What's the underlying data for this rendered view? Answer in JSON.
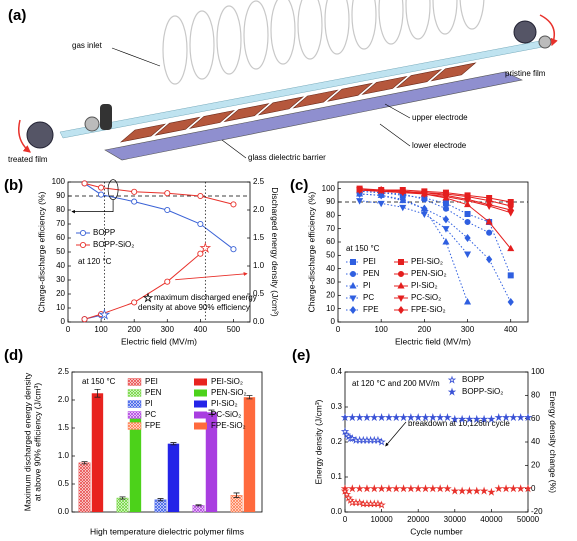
{
  "figure_a": {
    "label": "(a)",
    "gas_inlet": "gas inlet",
    "pristine_film": "pristine  film",
    "upper_electrode": "upper electrode",
    "lower_electrode": "lower electrode",
    "glass_barrier": "glass dielectric barrier",
    "treated_film": "treated film"
  },
  "chart_data": [
    {
      "type": "line",
      "panel_label": "(b)",
      "x_label": "Electric field (MV/m)",
      "y_label": "Charge-discharge efficiency (%)",
      "y2_label": "Discharged energy density (J/cm³)",
      "x": [
        50,
        100,
        200,
        300,
        400,
        500
      ],
      "xlim": [
        0,
        550
      ],
      "xticks": [
        0,
        100,
        200,
        300,
        400,
        500
      ],
      "ylim": [
        0,
        100
      ],
      "yticks": [
        0,
        10,
        20,
        30,
        40,
        50,
        60,
        70,
        80,
        90,
        100
      ],
      "y2lim": [
        0,
        2.5
      ],
      "y2ticks": [
        {
          "value": 0,
          "label": "0.0"
        },
        0.5,
        {
          "value": 1,
          "label": "1.0"
        },
        1.5,
        {
          "value": 2,
          "label": "2.0"
        },
        2.5
      ],
      "reference_line": 90,
      "series": [
        {
          "name": "BOPP",
          "color": "#3a62d6",
          "marker": "circle",
          "filled": false,
          "values": [
            99,
            91,
            86,
            80,
            70,
            52
          ]
        },
        {
          "name": "BOPP-SiO₂",
          "color": "#e8312b",
          "marker": "circle",
          "filled": false,
          "values": [
            99,
            96,
            93,
            92,
            90,
            84
          ]
        },
        {
          "axis": "y2",
          "color": "#3a62d6",
          "marker": "circle",
          "filled": false,
          "values": [
            0.05,
            0.12,
            null,
            null,
            null,
            null
          ]
        },
        {
          "axis": "y2",
          "color": "#e8312b",
          "marker": "circle",
          "filled": false,
          "values": [
            0.05,
            0.14,
            0.35,
            0.72,
            1.22,
            null
          ]
        }
      ],
      "stars": [
        {
          "x": 110,
          "value": 0.13,
          "color": "#3a62d6"
        },
        {
          "x": 415,
          "value": 1.32,
          "color": "#e8312b"
        }
      ],
      "star_note": [
        "maximum discharged energy",
        "density at above 90% efficiency"
      ],
      "annotations": [
        "at 120 °C"
      ]
    },
    {
      "type": "line",
      "panel_label": "(c)",
      "x_label": "Electric field (MV/m)",
      "y_label": "Charge-discharge efficiency (%)",
      "x": [
        50,
        100,
        150,
        200,
        250,
        300,
        350,
        400
      ],
      "xlim": [
        0,
        440
      ],
      "xticks": [
        0,
        100,
        200,
        300,
        400
      ],
      "ylim": [
        0,
        105
      ],
      "yticks": [
        0,
        10,
        20,
        30,
        40,
        50,
        60,
        70,
        80,
        90,
        100
      ],
      "reference_line": 90,
      "series": [
        {
          "name": "PEI",
          "color": "#2f5fe0",
          "marker": "square",
          "filled": true,
          "dashed": true,
          "values": [
            98,
            97,
            95,
            93,
            89,
            81,
            75,
            35
          ]
        },
        {
          "name": "PEI-SiO₂",
          "color": "#e41e1e",
          "marker": "square",
          "filled": true,
          "values": [
            100,
            99,
            99,
            98,
            97,
            95,
            93,
            90
          ]
        },
        {
          "name": "PEN",
          "color": "#2f5fe0",
          "marker": "circle",
          "filled": true,
          "dashed": true,
          "values": [
            98,
            97,
            96,
            92,
            85,
            75,
            67,
            null
          ]
        },
        {
          "name": "PEN-SiO₂",
          "color": "#e41e1e",
          "marker": "circle",
          "filled": true,
          "values": [
            99,
            99,
            98,
            97,
            96,
            94,
            91,
            87
          ]
        },
        {
          "name": "PI",
          "color": "#2f5fe0",
          "marker": "triangle-up",
          "filled": true,
          "dashed": true,
          "values": [
            96,
            95,
            91,
            85,
            60,
            15,
            null,
            null
          ]
        },
        {
          "name": "PI-SiO₂",
          "color": "#e41e1e",
          "marker": "triangle-up",
          "filled": true,
          "values": [
            99,
            98,
            98,
            96,
            93,
            88,
            75,
            55
          ]
        },
        {
          "name": "PC",
          "color": "#2f5fe0",
          "marker": "triangle-down",
          "filled": true,
          "dashed": true,
          "values": [
            91,
            89,
            86,
            81,
            70,
            51,
            null,
            null
          ]
        },
        {
          "name": "PC-SiO₂",
          "color": "#e41e1e",
          "marker": "triangle-down",
          "filled": true,
          "values": [
            99,
            98,
            97,
            96,
            94,
            91,
            87,
            82
          ]
        },
        {
          "name": "FPE",
          "color": "#2f5fe0",
          "marker": "diamond",
          "filled": true,
          "dashed": true,
          "values": [
            96,
            95,
            92,
            85,
            77,
            63,
            47,
            15
          ]
        },
        {
          "name": "FPE-SiO₂",
          "color": "#e41e1e",
          "marker": "diamond",
          "filled": true,
          "values": [
            99,
            99,
            98,
            97,
            95,
            92,
            88,
            84
          ]
        }
      ],
      "annotations": [
        "at 150  °C"
      ]
    },
    {
      "type": "bar",
      "panel_label": "(d)",
      "x_label": "High temperature dielectric polymer films",
      "y_label": [
        "Maximum discharged energy density",
        "at above 90% efficiency (J/cm³)"
      ],
      "ylim": [
        0,
        2.5
      ],
      "yticks": [
        {
          "value": 0,
          "label": "0.0"
        },
        0.5,
        {
          "value": 1,
          "label": "1.0"
        },
        1.5,
        {
          "value": 2,
          "label": "2.0"
        },
        2.5
      ],
      "series": [
        {
          "name": "PEI",
          "color": "#e84a4a",
          "hatch": true,
          "values": [
            0.88
          ],
          "errors": [
            0.02
          ]
        },
        {
          "name": "PEI-SiO₂",
          "color": "#e8231f",
          "values": [
            2.12
          ],
          "errors": [
            0.07
          ]
        },
        {
          "name": "PEN",
          "color": "#6fd63a",
          "hatch": true,
          "values": [
            0.25
          ],
          "errors": [
            0.02
          ]
        },
        {
          "name": "PEN-SiO₂",
          "color": "#4cd21a",
          "values": [
            1.75
          ],
          "errors": [
            0.02
          ]
        },
        {
          "name": "PI",
          "color": "#3a5be8",
          "hatch": true,
          "values": [
            0.22
          ],
          "errors": [
            0.02
          ]
        },
        {
          "name": "PI-SiO₂",
          "color": "#2424e8",
          "values": [
            1.22
          ],
          "errors": [
            0.02
          ]
        },
        {
          "name": "PC",
          "color": "#b040e0",
          "hatch": true,
          "values": [
            0.12
          ],
          "errors": [
            0.01
          ]
        },
        {
          "name": "PC-SiO₂",
          "color": "#a93ee0",
          "values": [
            1.78
          ],
          "errors": [
            0.04
          ]
        },
        {
          "name": "FPE",
          "color": "#ff7a4d",
          "hatch": true,
          "values": [
            0.3
          ],
          "errors": [
            0.04
          ]
        },
        {
          "name": "FPE-SiO₂",
          "color": "#ff6a3d",
          "values": [
            2.05
          ],
          "errors": [
            0.03
          ]
        }
      ],
      "annotations": [
        "at 150 °C"
      ]
    },
    {
      "type": "scatter",
      "panel_label": "(e)",
      "x_label": "Cycle number",
      "y_label": "Energy  density (J/cm³)",
      "y2_label": "Energy density change (%)",
      "y_label_color": "#3a52d6",
      "y2_label_color": "#e8312b",
      "xlim": [
        0,
        50000
      ],
      "xticks": [
        0,
        10000,
        20000,
        30000,
        40000,
        50000
      ],
      "ylim": [
        0,
        0.4
      ],
      "yticks": [
        {
          "value": 0,
          "label": "0.0"
        },
        0.1,
        0.2,
        0.3,
        0.4
      ],
      "y2lim": [
        -20,
        100
      ],
      "y2ticks": [
        -20,
        0,
        20,
        40,
        60,
        80,
        100
      ],
      "series": [
        {
          "name": "BOPP",
          "color": "#3a52d6",
          "marker": "star",
          "filled": false,
          "x": [
            0,
            500,
            1000,
            1500,
            2000,
            3000,
            4000,
            5000,
            6000,
            7000,
            8000,
            9000,
            10000
          ],
          "values": [
            0.23,
            0.22,
            0.215,
            0.21,
            0.21,
            0.205,
            0.205,
            0.205,
            0.205,
            0.205,
            0.205,
            0.205,
            0.2
          ]
        },
        {
          "name": "BOPP-SiO₂",
          "color": "#3a52d6",
          "marker": "star",
          "filled": true,
          "x": [
            0,
            2000,
            4000,
            6000,
            8000,
            10000,
            12000,
            14000,
            16000,
            18000,
            20000,
            22000,
            24000,
            26000,
            28000,
            30000,
            32000,
            34000,
            36000,
            38000,
            40000,
            42000,
            44000,
            46000,
            48000,
            50000
          ],
          "values": [
            0.27,
            0.27,
            0.27,
            0.27,
            0.27,
            0.27,
            0.27,
            0.27,
            0.27,
            0.27,
            0.27,
            0.27,
            0.27,
            0.27,
            0.27,
            0.265,
            0.265,
            0.265,
            0.265,
            0.265,
            0.265,
            0.27,
            0.27,
            0.27,
            0.27,
            0.27
          ]
        },
        {
          "axis": "y2",
          "color": "#e8312b",
          "marker": "star",
          "filled": false,
          "x": [
            0,
            500,
            1000,
            1500,
            2000,
            3000,
            4000,
            5000,
            6000,
            7000,
            8000,
            9000,
            10000
          ],
          "values": [
            -2,
            -5,
            -8,
            -10,
            -12,
            -12,
            -12,
            -13,
            -13,
            -13,
            -13,
            -13,
            -14
          ]
        },
        {
          "axis": "y2",
          "color": "#e8312b",
          "marker": "star",
          "filled": true,
          "x": [
            0,
            2000,
            4000,
            6000,
            8000,
            10000,
            12000,
            14000,
            16000,
            18000,
            20000,
            22000,
            24000,
            26000,
            28000,
            30000,
            32000,
            34000,
            36000,
            38000,
            40000,
            42000,
            44000,
            46000,
            48000,
            50000
          ],
          "values": [
            0,
            0,
            0,
            0,
            0,
            0,
            0,
            0,
            0,
            0,
            0,
            0,
            0,
            0,
            0,
            -2,
            -2,
            -2,
            -2,
            -2,
            -3,
            0,
            0,
            0,
            0,
            0
          ]
        }
      ],
      "annotations": [
        "at 120 °C and 200 MV/m",
        "breakdown at 10,126th cycle"
      ]
    }
  ]
}
